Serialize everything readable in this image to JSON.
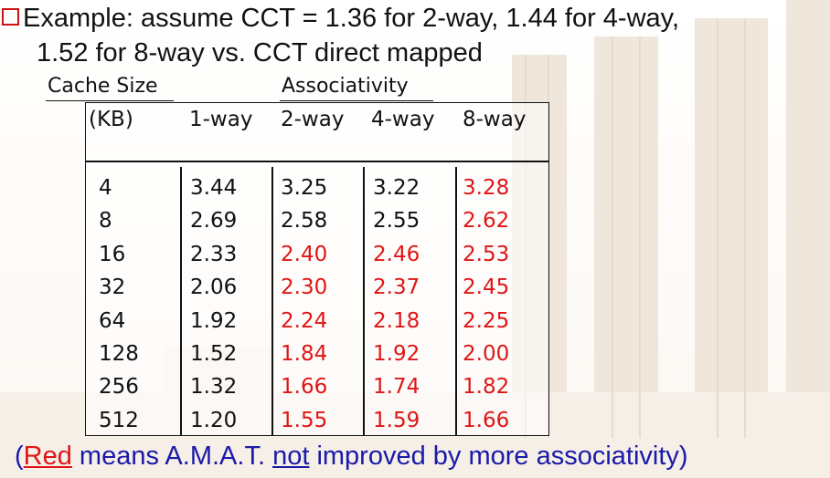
{
  "bullet": {
    "line1": "Example: assume CCT = 1.36 for 2-way, 1.44 for 4-way,",
    "line2": "1.52 for 8-way vs. CCT direct mapped"
  },
  "table": {
    "cache_size_label": "Cache Size",
    "associativity_label": "Associativity",
    "kb_label": "(KB)",
    "columns": [
      "1-way",
      "2-way",
      "4-way",
      "8-way"
    ],
    "rows": [
      {
        "size": "4",
        "vals": [
          "3.44",
          "3.25",
          "3.22",
          "3.28"
        ],
        "red": [
          false,
          false,
          false,
          true
        ]
      },
      {
        "size": "8",
        "vals": [
          "2.69",
          "2.58",
          "2.55",
          "2.62"
        ],
        "red": [
          false,
          false,
          false,
          true
        ]
      },
      {
        "size": "16",
        "vals": [
          "2.33",
          "2.40",
          "2.46",
          "2.53"
        ],
        "red": [
          false,
          true,
          true,
          true
        ]
      },
      {
        "size": "32",
        "vals": [
          "2.06",
          "2.30",
          "2.37",
          "2.45"
        ],
        "red": [
          false,
          true,
          true,
          true
        ]
      },
      {
        "size": "64",
        "vals": [
          "1.92",
          "2.24",
          "2.18",
          "2.25"
        ],
        "red": [
          false,
          true,
          true,
          true
        ]
      },
      {
        "size": "128",
        "vals": [
          "1.52",
          "1.84",
          "1.92",
          "2.00"
        ],
        "red": [
          false,
          true,
          true,
          true
        ]
      },
      {
        "size": "256",
        "vals": [
          "1.32",
          "1.66",
          "1.74",
          "1.82"
        ],
        "red": [
          false,
          true,
          true,
          true
        ]
      },
      {
        "size": "512",
        "vals": [
          "1.20",
          "1.55",
          "1.59",
          "1.66"
        ],
        "red": [
          false,
          true,
          true,
          true
        ]
      }
    ]
  },
  "footnote": {
    "open": "(",
    "red_word": "Red",
    "mid": " means A.M.A.T. ",
    "not_word": "not",
    "end": " improved by more associativity)"
  },
  "colors": {
    "red": "#e01515",
    "bullet_box": "#cc1111",
    "footnote_blue": "#1a1aa8"
  },
  "icons": {
    "bullet": "hollow-square-bullet-icon"
  }
}
